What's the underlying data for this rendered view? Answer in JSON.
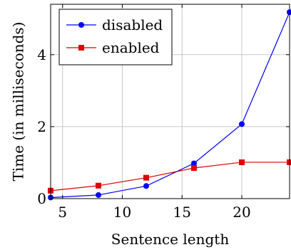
{
  "chart_data": {
    "type": "line",
    "xlabel": "Sentence length",
    "ylabel": "Time (in milliseconds)",
    "xlim": [
      4,
      24
    ],
    "ylim": [
      0,
      5.4
    ],
    "xticks": [
      5,
      10,
      15,
      20
    ],
    "yticks": [
      0,
      2,
      4
    ],
    "grid": true,
    "legend_position": "top-left",
    "series": [
      {
        "name": "disabled",
        "color": "#0000ff",
        "marker": "circle",
        "x": [
          4,
          8,
          12,
          16,
          20,
          24
        ],
        "values": [
          0.03,
          0.1,
          0.35,
          0.98,
          2.07,
          5.18
        ]
      },
      {
        "name": "enabled",
        "color": "#e00000",
        "marker": "square",
        "x": [
          4,
          8,
          12,
          16,
          20,
          24
        ],
        "values": [
          0.22,
          0.36,
          0.58,
          0.85,
          1.01,
          1.01
        ]
      }
    ]
  }
}
